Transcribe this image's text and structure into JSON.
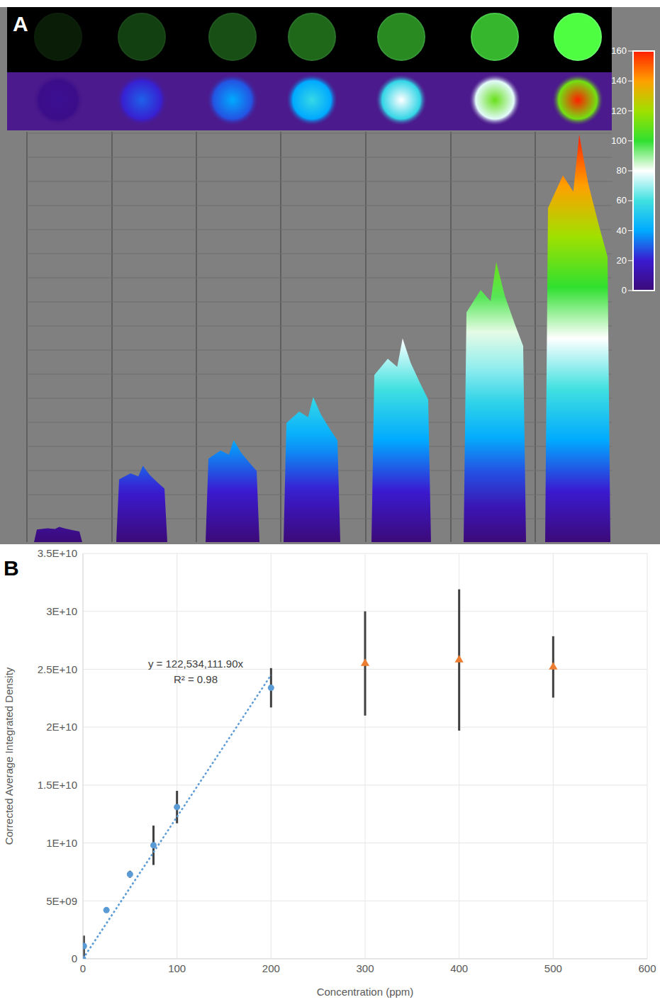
{
  "chart_data": [
    {
      "panel": "A",
      "type": "surface_image",
      "colorbar": {
        "range": [
          0,
          160
        ],
        "ticks": [
          0,
          20,
          40,
          60,
          80,
          100,
          120,
          140,
          160
        ]
      },
      "values": [
        6,
        30,
        40,
        57,
        80,
        110,
        160
      ]
    },
    {
      "panel": "B",
      "type": "scatter",
      "x_label": "Concentration (ppm)",
      "y_label": "Corrected Average Integrated Density",
      "xlim": [
        0,
        600
      ],
      "xticks": [
        0,
        100,
        200,
        300,
        400,
        500,
        600
      ],
      "ylim": [
        0,
        35000000000
      ],
      "yticks": [
        0,
        {
          "value": 5000000000,
          "label": "5E+09"
        },
        {
          "value": 10000000000,
          "label": "1E+10"
        },
        {
          "value": 15000000000,
          "label": "1.5E+10"
        },
        {
          "value": 20000000000,
          "label": "2E+10"
        },
        {
          "value": 25000000000,
          "label": "2.5E+10"
        },
        {
          "value": 30000000000,
          "label": "3E+10"
        },
        {
          "value": 35000000000,
          "label": "3.5E+10"
        }
      ],
      "grid": true,
      "series": [
        {
          "color": "#5b9bd5",
          "marker": "circle",
          "x": [
            0,
            1,
            25,
            50,
            75,
            100,
            200
          ],
          "values": [
            0,
            1100000000,
            4200000000,
            7300000000,
            9800000000,
            13100000000,
            23400000000
          ],
          "errors": [
            0,
            900000000,
            200000000,
            300000000,
            1700000000,
            1400000000,
            1700000000
          ]
        },
        {
          "color": "#ed7d31",
          "marker": "triangle",
          "x": [
            300,
            400,
            500
          ],
          "values": [
            25500000000,
            25800000000,
            25200000000
          ],
          "errors": [
            4500000000,
            6100000000,
            2650000000
          ]
        }
      ],
      "trendline": {
        "slope": 122534111.9,
        "xlim": [
          0,
          200
        ],
        "color": "#5b9bd5",
        "line_style": "dotted",
        "equation": "y = 122,534,111.90x",
        "r2": "R² = 0.98"
      }
    }
  ]
}
